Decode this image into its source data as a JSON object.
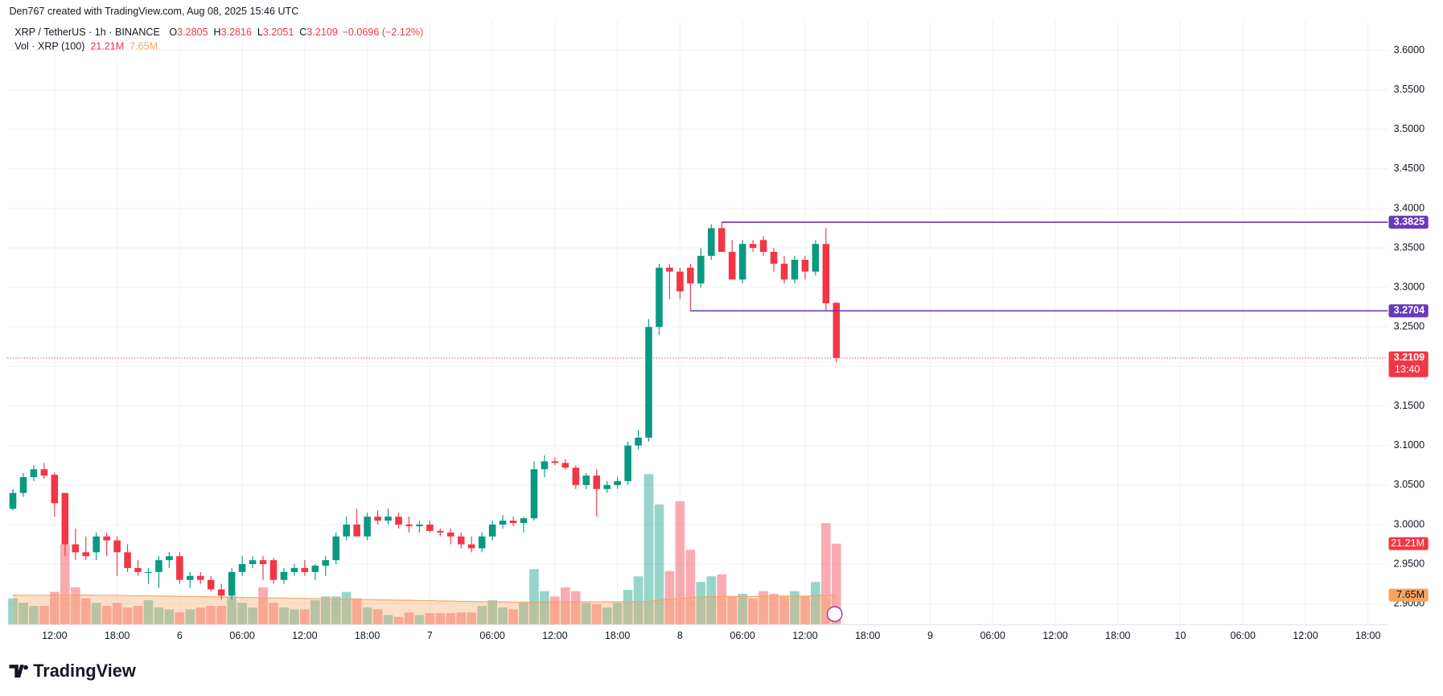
{
  "header": "Den767 created with TradingView.com, Aug 08, 2025 15:46 UTC",
  "footer": "TradingView",
  "chart_data": {
    "type": "candlestick",
    "symbol": "XRP / TetherUS · 1h · BINANCE",
    "ohlc_legend": [
      {
        "key": "O",
        "label": "3.2805"
      },
      {
        "key": "H",
        "label": "3.2816"
      },
      {
        "key": "L",
        "label": "3.2051"
      },
      {
        "key": "C",
        "label": "3.2109"
      }
    ],
    "change": "−0.0696 (−2.12%)",
    "open": [
      3.02,
      3.04,
      3.06,
      3.07,
      3.063,
      3.04,
      2.975,
      2.965,
      2.965,
      2.985,
      2.98,
      2.965,
      2.945,
      2.94,
      2.94,
      2.955,
      2.96,
      2.93,
      2.935,
      2.93,
      2.918,
      2.91,
      2.94,
      2.95,
      2.955,
      2.955,
      2.93,
      2.94,
      2.945,
      2.94,
      2.948,
      2.955,
      2.985,
      3.0,
      2.985,
      3.01,
      3.005,
      3.01,
      3.0,
      2.998,
      3.0,
      2.992,
      2.99,
      2.985,
      2.975,
      2.97,
      2.985,
      3.0,
      3.005,
      3.002,
      3.008,
      3.07,
      3.08,
      3.078,
      3.072,
      3.05,
      3.062,
      3.045,
      3.05,
      3.055,
      3.1,
      3.11,
      3.25,
      3.325,
      3.32,
      3.325,
      3.305,
      3.34,
      3.375,
      3.345,
      3.31,
      3.355,
      3.36,
      3.345,
      3.33,
      3.31,
      3.335,
      3.32,
      3.355,
      3.2805
    ],
    "high": [
      3.045,
      3.065,
      3.075,
      3.078,
      3.066,
      3.04,
      2.995,
      2.985,
      2.99,
      2.99,
      2.985,
      2.975,
      2.955,
      2.945,
      2.96,
      2.965,
      2.965,
      2.94,
      2.94,
      2.935,
      2.925,
      2.945,
      2.96,
      2.96,
      2.96,
      2.958,
      2.945,
      2.95,
      2.955,
      2.95,
      2.96,
      2.99,
      3.01,
      3.02,
      3.015,
      3.018,
      3.02,
      3.015,
      3.01,
      3.005,
      3.005,
      2.995,
      2.995,
      2.99,
      2.985,
      2.99,
      3.005,
      3.012,
      3.01,
      3.01,
      3.08,
      3.088,
      3.085,
      3.083,
      3.075,
      3.065,
      3.07,
      3.055,
      3.06,
      3.105,
      3.12,
      3.26,
      3.33,
      3.33,
      3.325,
      3.33,
      3.35,
      3.38,
      3.3825,
      3.36,
      3.36,
      3.36,
      3.365,
      3.35,
      3.34,
      3.34,
      3.34,
      3.36,
      3.375,
      3.2816
    ],
    "low": [
      3.018,
      3.035,
      3.055,
      3.058,
      3.01,
      2.96,
      2.955,
      2.955,
      2.955,
      2.96,
      2.935,
      2.94,
      2.935,
      2.925,
      2.92,
      2.945,
      2.925,
      2.92,
      2.925,
      2.915,
      2.905,
      2.905,
      2.935,
      2.945,
      2.93,
      2.925,
      2.925,
      2.935,
      2.935,
      2.93,
      2.935,
      2.95,
      2.98,
      2.99,
      2.98,
      3.0,
      3.0,
      2.995,
      2.99,
      2.99,
      2.99,
      2.985,
      2.975,
      2.97,
      2.965,
      2.965,
      2.98,
      2.995,
      2.998,
      2.99,
      3.005,
      3.06,
      3.075,
      3.07,
      3.045,
      3.045,
      3.01,
      3.04,
      3.045,
      3.05,
      3.095,
      3.105,
      3.24,
      3.285,
      3.285,
      3.27,
      3.3,
      3.335,
      3.345,
      3.31,
      3.305,
      3.345,
      3.34,
      3.32,
      3.305,
      3.305,
      3.31,
      3.315,
      3.27,
      3.2051
    ],
    "close": [
      3.04,
      3.06,
      3.07,
      3.062,
      3.027,
      2.975,
      2.965,
      2.96,
      2.985,
      2.98,
      2.965,
      2.945,
      2.94,
      2.94,
      2.955,
      2.96,
      2.93,
      2.935,
      2.93,
      2.918,
      2.91,
      2.94,
      2.95,
      2.955,
      2.95,
      2.93,
      2.94,
      2.945,
      2.94,
      2.948,
      2.955,
      2.985,
      3.0,
      2.985,
      3.01,
      3.005,
      3.01,
      3.0,
      2.998,
      3.0,
      2.992,
      2.99,
      2.985,
      2.975,
      2.97,
      2.985,
      3.0,
      3.005,
      3.002,
      3.008,
      3.07,
      3.08,
      3.078,
      3.072,
      3.05,
      3.062,
      3.045,
      3.05,
      3.055,
      3.1,
      3.11,
      3.25,
      3.325,
      3.32,
      3.295,
      3.305,
      3.34,
      3.375,
      3.345,
      3.31,
      3.355,
      3.35,
      3.345,
      3.33,
      3.31,
      3.335,
      3.32,
      3.355,
      3.28,
      3.2109
    ],
    "up_color": "#089981",
    "down_color": "#f23645",
    "ylim": [
      2.874,
      3.638
    ],
    "yticks": [
      {
        "value": 2.9,
        "label": "2.9000"
      },
      {
        "value": 2.95,
        "label": "2.9500"
      },
      {
        "value": 3.0,
        "label": "3.0000"
      },
      {
        "value": 3.05,
        "label": "3.0500"
      },
      {
        "value": 3.1,
        "label": "3.1000"
      },
      {
        "value": 3.15,
        "label": "3.1500"
      },
      {
        "value": 3.2,
        "label": "3.2000"
      },
      {
        "value": 3.25,
        "label": "3.2500"
      },
      {
        "value": 3.3,
        "label": "3.3000"
      },
      {
        "value": 3.35,
        "label": "3.3500"
      },
      {
        "value": 3.4,
        "label": "3.4000"
      },
      {
        "value": 3.45,
        "label": "3.4500"
      },
      {
        "value": 3.5,
        "label": "3.5000"
      },
      {
        "value": 3.55,
        "label": "3.5500"
      },
      {
        "value": 3.6,
        "label": "3.6000"
      }
    ],
    "xlim": [
      -0.53,
      131.9
    ],
    "xticks": [
      {
        "value": 4,
        "label": "12:00"
      },
      {
        "value": 10,
        "label": "18:00"
      },
      {
        "value": 16,
        "label": "6"
      },
      {
        "value": 22,
        "label": "06:00"
      },
      {
        "value": 28,
        "label": "12:00"
      },
      {
        "value": 34,
        "label": "18:00"
      },
      {
        "value": 40,
        "label": "7"
      },
      {
        "value": 46,
        "label": "06:00"
      },
      {
        "value": 52,
        "label": "12:00"
      },
      {
        "value": 58,
        "label": "18:00"
      },
      {
        "value": 64,
        "label": "8"
      },
      {
        "value": 70,
        "label": "06:00"
      },
      {
        "value": 76,
        "label": "12:00"
      },
      {
        "value": 82,
        "label": "18:00"
      },
      {
        "value": 88,
        "label": "9"
      },
      {
        "value": 94,
        "label": "06:00"
      },
      {
        "value": 100,
        "label": "12:00"
      },
      {
        "value": 106,
        "label": "18:00"
      },
      {
        "value": 112,
        "label": "10"
      },
      {
        "value": 118,
        "label": "06:00"
      },
      {
        "value": 124,
        "label": "12:00"
      },
      {
        "value": 130,
        "label": "18:00"
      }
    ],
    "grid": true,
    "levels": [
      {
        "value": 3.3825,
        "label": "3.3825",
        "from": 68,
        "color": "#673ab7"
      },
      {
        "value": 3.2704,
        "label": "3.2704",
        "from": 65,
        "color": "#673ab7"
      }
    ],
    "last_price": {
      "value": 3.2109,
      "label": "3.2109",
      "countdown": "13:40"
    },
    "volume": {
      "name": "Vol · XRP (100)",
      "vlim": [
        0,
        159
      ],
      "values": [
        6.8,
        5.6,
        4.8,
        4.8,
        8.5,
        21,
        9.7,
        6.8,
        5.6,
        4.8,
        5.6,
        4.4,
        4.8,
        6.3,
        4.4,
        3.9,
        3.1,
        3.9,
        4.4,
        4.8,
        4.8,
        7.3,
        5.6,
        4.4,
        9.7,
        5.6,
        4.4,
        3.9,
        3.9,
        6.3,
        7.3,
        7.3,
        8.5,
        6.8,
        4.4,
        3.9,
        2.4,
        1.9,
        3.1,
        2.4,
        2.9,
        2.9,
        2.9,
        3.1,
        3.1,
        4.8,
        6.3,
        4.4,
        3.9,
        5.6,
        14.5,
        8.7,
        7.3,
        9.7,
        8.7,
        5.6,
        5.3,
        4.4,
        5.6,
        9,
        12.6,
        39.5,
        31.5,
        14,
        32.4,
        19.6,
        11.1,
        12.6,
        13.1,
        7.3,
        8,
        6.8,
        8.7,
        8,
        7.3,
        8.7,
        7.3,
        11.1,
        26.6,
        21.21
      ],
      "last_label": "21.21M",
      "ma": {
        "color": "#f7a35c",
        "label": "7.65M",
        "values": [
          7.6,
          7.6,
          7.6,
          7.6,
          7.6,
          7.7,
          7.7,
          7.7,
          7.6,
          7.6,
          7.6,
          7.5,
          7.5,
          7.5,
          7.4,
          7.4,
          7.3,
          7.3,
          7.2,
          7.2,
          7.1,
          7.1,
          7.0,
          7.0,
          7.0,
          6.9,
          6.9,
          6.8,
          6.8,
          6.7,
          6.7,
          6.6,
          6.6,
          6.5,
          6.5,
          6.4,
          6.4,
          6.3,
          6.3,
          6.2,
          6.2,
          6.1,
          6.1,
          6.0,
          6.0,
          5.9,
          5.9,
          5.9,
          5.8,
          5.8,
          5.8,
          5.9,
          5.9,
          5.9,
          5.9,
          5.9,
          5.9,
          5.9,
          5.9,
          5.9,
          6.0,
          6.0,
          6.3,
          6.6,
          6.7,
          7.0,
          7.1,
          7.2,
          7.3,
          7.3,
          7.3,
          7.3,
          7.4,
          7.4,
          7.4,
          7.4,
          7.4,
          7.5,
          7.6,
          7.65
        ]
      }
    }
  }
}
